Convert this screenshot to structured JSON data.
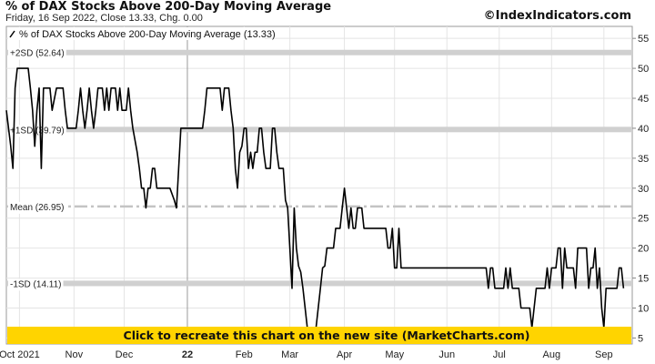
{
  "header": {
    "title": "% of DAX Stocks Above 200-Day Moving Average",
    "subtitle": "Friday, 16 Sep 2022, Close 13.33, Chg. 0.00",
    "credit": "©IndexIndicators.com"
  },
  "legend": {
    "label": "% of DAX Stocks Above 200-Day Moving Average (13.33)",
    "placement": "top-left"
  },
  "banner": {
    "text": "Click to recreate this chart on the new site (MarketCharts.com)",
    "color": "#ffd400"
  },
  "colors": {
    "line": "#000000",
    "band": "#d0d0d0",
    "grid": "#e4e4e4",
    "mean_line": "#c4c4c4"
  },
  "chart_data": {
    "type": "line",
    "ylim": [
      4,
      57
    ],
    "yticks": [
      5,
      10,
      15,
      20,
      25,
      30,
      35,
      40,
      45,
      50,
      55
    ],
    "grid": true,
    "x_tick_labels": [
      "Oct 2021",
      "Nov",
      "Dec",
      "22",
      "Feb",
      "Mar",
      "Apr",
      "May",
      "Jun",
      "Jul",
      "Aug",
      "Sep"
    ],
    "x_tick_positions": [
      0.06,
      0.31,
      0.54,
      0.83,
      1.09,
      1.3,
      1.55,
      1.78,
      2.02,
      2.26,
      2.5,
      2.74
    ],
    "reference_lines": [
      {
        "label": "+2SD (52.64)",
        "value": 52.64
      },
      {
        "label": "+1SD (39.79)",
        "value": 39.79
      },
      {
        "label": "Mean (26.95)",
        "value": 26.95
      },
      {
        "label": "-1SD (14.11)",
        "value": 14.11
      }
    ],
    "series": [
      {
        "name": "% of DAX Stocks Above 200-Day Moving Average",
        "points": [
          [
            0.0,
            43
          ],
          [
            0.01,
            40
          ],
          [
            0.02,
            37
          ],
          [
            0.03,
            33.3
          ],
          [
            0.04,
            46.7
          ],
          [
            0.05,
            50
          ],
          [
            0.1,
            50
          ],
          [
            0.11,
            46.7
          ],
          [
            0.12,
            43
          ],
          [
            0.13,
            37
          ],
          [
            0.14,
            43
          ],
          [
            0.15,
            46.7
          ],
          [
            0.16,
            33.3
          ],
          [
            0.17,
            46.7
          ],
          [
            0.2,
            46.7
          ],
          [
            0.21,
            43
          ],
          [
            0.23,
            46.7
          ],
          [
            0.26,
            46.7
          ],
          [
            0.27,
            43
          ],
          [
            0.28,
            40
          ],
          [
            0.32,
            40
          ],
          [
            0.33,
            43
          ],
          [
            0.34,
            46.7
          ],
          [
            0.35,
            43
          ],
          [
            0.36,
            40
          ],
          [
            0.37,
            43
          ],
          [
            0.38,
            46.7
          ],
          [
            0.39,
            43
          ],
          [
            0.4,
            40
          ],
          [
            0.41,
            43
          ],
          [
            0.42,
            46.7
          ],
          [
            0.44,
            46.7
          ],
          [
            0.45,
            43
          ],
          [
            0.46,
            46.7
          ],
          [
            0.47,
            43
          ],
          [
            0.48,
            46.7
          ],
          [
            0.5,
            46.7
          ],
          [
            0.51,
            43
          ],
          [
            0.52,
            46.7
          ],
          [
            0.53,
            43
          ],
          [
            0.55,
            43
          ],
          [
            0.56,
            46.7
          ],
          [
            0.57,
            43
          ],
          [
            0.58,
            40
          ],
          [
            0.6,
            36
          ],
          [
            0.61,
            33.3
          ],
          [
            0.62,
            30
          ],
          [
            0.63,
            30
          ],
          [
            0.64,
            26.7
          ],
          [
            0.65,
            30
          ],
          [
            0.66,
            30
          ],
          [
            0.67,
            33.3
          ],
          [
            0.68,
            33.3
          ],
          [
            0.69,
            30
          ],
          [
            0.75,
            30
          ],
          [
            0.77,
            28
          ],
          [
            0.78,
            26.7
          ],
          [
            0.79,
            33.3
          ],
          [
            0.8,
            40
          ],
          [
            0.9,
            40
          ],
          [
            0.91,
            43
          ],
          [
            0.92,
            46.7
          ],
          [
            0.98,
            46.7
          ],
          [
            0.99,
            43
          ],
          [
            1.0,
            46.7
          ],
          [
            1.02,
            46.7
          ],
          [
            1.03,
            43
          ],
          [
            1.04,
            40
          ],
          [
            1.05,
            33.3
          ],
          [
            1.06,
            30
          ],
          [
            1.07,
            36
          ],
          [
            1.08,
            37
          ],
          [
            1.09,
            40
          ],
          [
            1.1,
            40
          ],
          [
            1.11,
            33.3
          ],
          [
            1.12,
            36
          ],
          [
            1.13,
            33.3
          ],
          [
            1.14,
            36
          ],
          [
            1.15,
            36
          ],
          [
            1.16,
            40
          ],
          [
            1.17,
            40
          ],
          [
            1.18,
            36
          ],
          [
            1.19,
            33.3
          ],
          [
            1.21,
            33.3
          ],
          [
            1.22,
            40
          ],
          [
            1.23,
            40
          ],
          [
            1.24,
            36
          ],
          [
            1.25,
            33.3
          ],
          [
            1.27,
            33.3
          ],
          [
            1.28,
            28
          ],
          [
            1.29,
            26.7
          ],
          [
            1.3,
            20
          ],
          [
            1.31,
            13.3
          ],
          [
            1.32,
            26.7
          ],
          [
            1.33,
            20
          ],
          [
            1.34,
            17
          ],
          [
            1.35,
            16
          ],
          [
            1.36,
            13.3
          ],
          [
            1.37,
            10
          ],
          [
            1.38,
            6.7
          ],
          [
            1.41,
            6.7
          ],
          [
            1.42,
            6.7
          ],
          [
            1.43,
            10
          ],
          [
            1.44,
            13.3
          ],
          [
            1.45,
            16.7
          ],
          [
            1.46,
            17
          ],
          [
            1.47,
            20
          ],
          [
            1.5,
            20
          ],
          [
            1.51,
            23.3
          ],
          [
            1.53,
            23.3
          ],
          [
            1.54,
            26.7
          ],
          [
            1.55,
            30
          ],
          [
            1.56,
            26.7
          ],
          [
            1.57,
            23.3
          ],
          [
            1.58,
            26.7
          ],
          [
            1.59,
            23.3
          ],
          [
            1.6,
            23.3
          ],
          [
            1.61,
            26.7
          ],
          [
            1.63,
            26.7
          ],
          [
            1.64,
            23.3
          ],
          [
            1.74,
            23.3
          ],
          [
            1.75,
            20
          ],
          [
            1.76,
            20
          ],
          [
            1.77,
            23.3
          ],
          [
            1.78,
            16.7
          ],
          [
            1.79,
            16.7
          ],
          [
            1.8,
            23.3
          ],
          [
            1.81,
            16.7
          ],
          [
            1.83,
            16.7
          ],
          [
            2.0,
            16.7
          ],
          [
            2.2,
            16.7
          ],
          [
            2.21,
            13.3
          ],
          [
            2.22,
            16.7
          ],
          [
            2.23,
            16.7
          ],
          [
            2.24,
            13.3
          ],
          [
            2.28,
            13.3
          ],
          [
            2.29,
            16.7
          ],
          [
            2.3,
            13.3
          ],
          [
            2.31,
            16.7
          ],
          [
            2.32,
            13.3
          ],
          [
            2.35,
            13.3
          ],
          [
            2.36,
            10
          ],
          [
            2.4,
            10
          ],
          [
            2.41,
            6.7
          ],
          [
            2.42,
            10
          ],
          [
            2.43,
            13.3
          ],
          [
            2.47,
            13.3
          ],
          [
            2.48,
            16.7
          ],
          [
            2.49,
            13.3
          ],
          [
            2.5,
            16.7
          ],
          [
            2.52,
            16.7
          ],
          [
            2.53,
            20
          ],
          [
            2.54,
            20
          ],
          [
            2.55,
            13.3
          ],
          [
            2.56,
            20
          ],
          [
            2.57,
            16.7
          ],
          [
            2.6,
            16.7
          ],
          [
            2.61,
            13.3
          ],
          [
            2.62,
            20
          ],
          [
            2.66,
            20
          ],
          [
            2.67,
            13.3
          ],
          [
            2.68,
            16.7
          ],
          [
            2.69,
            16.7
          ],
          [
            2.7,
            20
          ],
          [
            2.71,
            13.3
          ],
          [
            2.72,
            16.7
          ],
          [
            2.73,
            10
          ],
          [
            2.74,
            6.7
          ],
          [
            2.75,
            13.3
          ],
          [
            2.8,
            13.3
          ],
          [
            2.81,
            16.7
          ],
          [
            2.82,
            16.7
          ],
          [
            2.83,
            13.3
          ]
        ]
      }
    ]
  }
}
